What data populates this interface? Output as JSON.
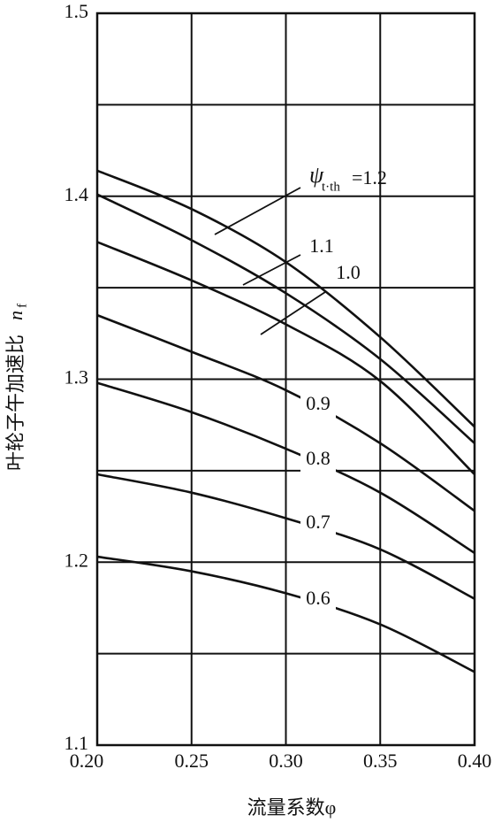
{
  "chart_data": {
    "type": "line",
    "x_label": "流量系数φ",
    "y_label": "叶轮子午加速比",
    "y_label_symbol": "n",
    "y_label_subscript": "f",
    "x": [
      0.2,
      0.25,
      0.3,
      0.35,
      0.4
    ],
    "xlim": [
      0.2,
      0.4
    ],
    "xticks": [
      {
        "value": 0.2,
        "label": "0.20"
      },
      {
        "value": 0.25,
        "label": "0.25"
      },
      {
        "value": 0.3,
        "label": "0.30"
      },
      {
        "value": 0.35,
        "label": "0.35"
      },
      {
        "value": 0.4,
        "label": "0.40"
      }
    ],
    "ylim": [
      1.1,
      1.5
    ],
    "yticks": [
      1.1,
      1.2,
      1.3,
      1.4,
      1.5
    ],
    "y_minor_grid": [
      1.15,
      1.25,
      1.35,
      1.45
    ],
    "grid": true,
    "color": "#111111",
    "curve_symbol": "ψ",
    "curve_subscript": "t·th",
    "series": [
      {
        "name": "=1.2",
        "values": [
          1.414,
          1.393,
          1.364,
          1.323,
          1.274
        ]
      },
      {
        "name": "1.1",
        "values": [
          1.401,
          1.376,
          1.347,
          1.311,
          1.265
        ]
      },
      {
        "name": "1.0",
        "values": [
          1.375,
          1.354,
          1.33,
          1.299,
          1.248
        ]
      },
      {
        "name": "0.9",
        "values": [
          1.335,
          1.315,
          1.294,
          1.265,
          1.228
        ]
      },
      {
        "name": "0.8",
        "values": [
          1.298,
          1.282,
          1.262,
          1.238,
          1.205
        ]
      },
      {
        "name": "0.7",
        "values": [
          1.248,
          1.238,
          1.224,
          1.207,
          1.18
        ]
      },
      {
        "name": "0.6",
        "values": [
          1.203,
          1.195,
          1.183,
          1.166,
          1.14
        ]
      }
    ]
  }
}
